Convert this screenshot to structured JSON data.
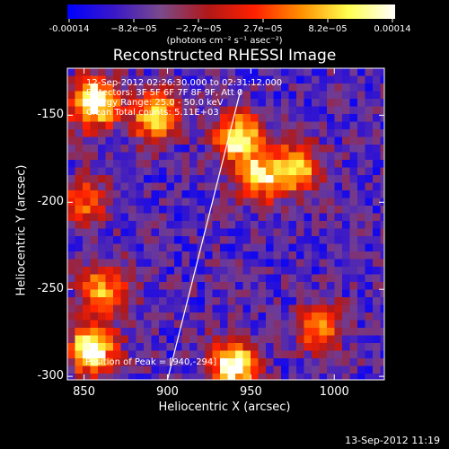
{
  "colorbar": {
    "tick_labels": [
      "-0.00014",
      "−8.2e−05",
      "−2.7e−05",
      "2.7e−05",
      "8.2e−05",
      "0.00014"
    ],
    "units": "(photons cm⁻² s⁻¹ asec⁻²)",
    "colors": [
      "#0000ff",
      "#3a18c8",
      "#7a4a8a",
      "#b01818",
      "#ff2000",
      "#ff9000",
      "#ffff50",
      "#ffffff"
    ]
  },
  "chart_data": {
    "type": "heatmap",
    "title": "Reconstructed RHESSI Image",
    "xlabel": "Heliocentric X (arcsec)",
    "ylabel": "Heliocentric Y (arcsec)",
    "xlim": [
      840,
      1030
    ],
    "ylim": [
      -302,
      -123
    ],
    "x_ticks": [
      850,
      900,
      950,
      1000
    ],
    "y_ticks": [
      -150,
      -200,
      -250,
      -300
    ],
    "info_lines": [
      "12-Sep-2012 02:26:30.000 to 02:31:12.000",
      "Detectors: 3F 5F 6F 7F 8F 9F, Att 0",
      "Energy Range: 25.0 - 50.0 keV",
      "Clean     Total counts: 5.11E+03"
    ],
    "peak_label": "Position of Peak = [940,-294]",
    "limb_line": [
      [
        900,
        -302
      ],
      [
        944,
        -135
      ]
    ],
    "hotspots": [
      {
        "x": 856,
        "y": -143,
        "value": 1.0
      },
      {
        "x": 893,
        "y": -150,
        "value": 0.75
      },
      {
        "x": 943,
        "y": -163,
        "value": 0.8
      },
      {
        "x": 955,
        "y": -185,
        "value": 0.7
      },
      {
        "x": 977,
        "y": -180,
        "value": 0.65
      },
      {
        "x": 850,
        "y": -200,
        "value": 0.45
      },
      {
        "x": 862,
        "y": -250,
        "value": 0.6
      },
      {
        "x": 855,
        "y": -285,
        "value": 0.95
      },
      {
        "x": 940,
        "y": -294,
        "value": 1.0
      },
      {
        "x": 992,
        "y": -272,
        "value": 0.5
      }
    ],
    "background_range": [
      0.02,
      0.28
    ],
    "date_stamp": "13-Sep-2012 11:19"
  }
}
